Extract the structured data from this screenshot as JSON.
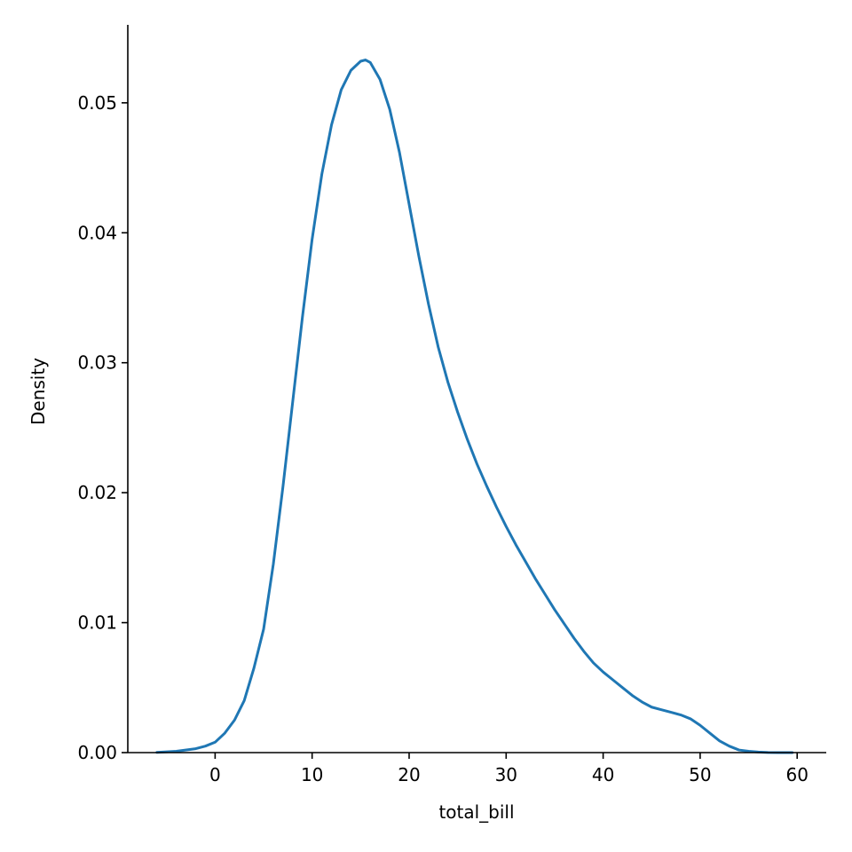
{
  "chart_data": {
    "type": "line",
    "title": "",
    "xlabel": "total_bill",
    "ylabel": "Density",
    "xlim": [
      -9,
      63
    ],
    "ylim": [
      0,
      0.056
    ],
    "xticks": [
      0,
      10,
      20,
      30,
      40,
      50,
      60
    ],
    "xtick_labels": [
      "0",
      "10",
      "20",
      "30",
      "40",
      "50",
      "60"
    ],
    "yticks": [
      0.0,
      0.01,
      0.02,
      0.03,
      0.04,
      0.05
    ],
    "ytick_labels": [
      "0.00",
      "0.01",
      "0.02",
      "0.03",
      "0.04",
      "0.05"
    ],
    "grid": false,
    "legend": "none",
    "series": [
      {
        "color": "#1f77b4",
        "x": [
          -6,
          -4,
          -2,
          -1,
          0,
          1,
          2,
          3,
          4,
          5,
          6,
          7,
          8,
          9,
          10,
          11,
          12,
          13,
          14,
          15,
          15.5,
          16,
          17,
          18,
          19,
          20,
          21,
          22,
          23,
          24,
          25,
          26,
          27,
          28,
          29,
          30,
          31,
          32,
          33,
          34,
          35,
          36,
          37,
          38,
          39,
          40,
          41,
          42,
          43,
          44,
          45,
          46,
          47,
          48,
          49,
          50,
          51,
          52,
          53,
          54,
          55,
          56,
          57,
          58,
          59.5
        ],
        "y": [
          2e-05,
          0.0001,
          0.0003,
          0.0005,
          0.0008,
          0.0015,
          0.0025,
          0.004,
          0.0065,
          0.0095,
          0.0145,
          0.0205,
          0.027,
          0.0335,
          0.0395,
          0.0445,
          0.0483,
          0.051,
          0.0525,
          0.0532,
          0.0533,
          0.0531,
          0.0518,
          0.0495,
          0.0462,
          0.0422,
          0.0382,
          0.0345,
          0.0312,
          0.0285,
          0.0262,
          0.0241,
          0.0222,
          0.0205,
          0.0189,
          0.0174,
          0.016,
          0.0147,
          0.0134,
          0.0122,
          0.011,
          0.0099,
          0.0088,
          0.0078,
          0.0069,
          0.0062,
          0.0056,
          0.005,
          0.0044,
          0.0039,
          0.0035,
          0.0033,
          0.0031,
          0.0029,
          0.0026,
          0.0021,
          0.0015,
          0.0009,
          0.0005,
          0.0002,
          0.0001,
          4e-05,
          1e-05,
          0.0,
          0.0
        ]
      }
    ]
  }
}
